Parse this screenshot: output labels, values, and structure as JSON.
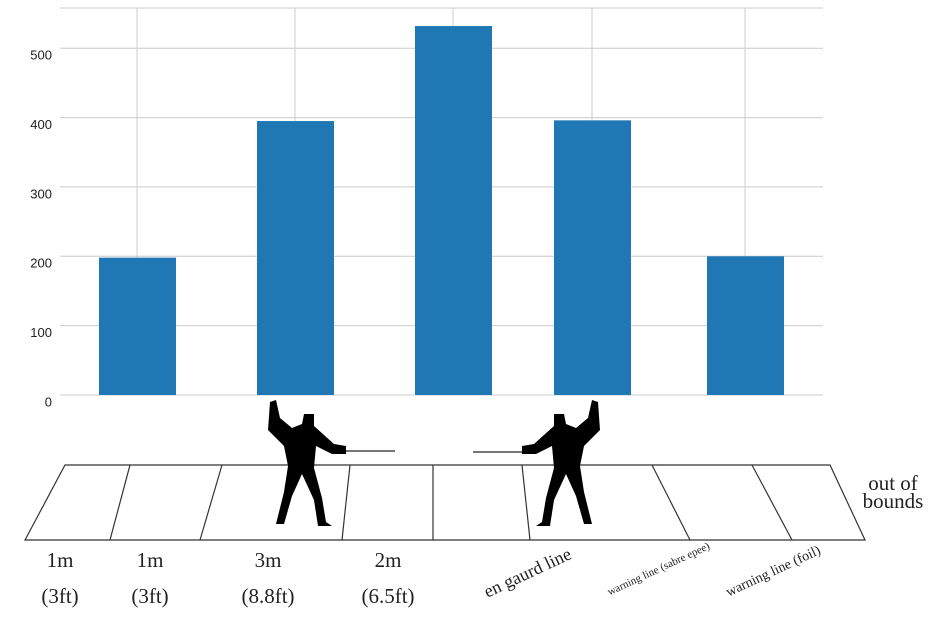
{
  "chart_data": {
    "type": "bar",
    "categories": [
      null,
      null,
      null,
      null,
      null
    ],
    "values": [
      198,
      395,
      532,
      396,
      200
    ],
    "color": "#1f77b4",
    "ylim": [
      0,
      558
    ],
    "yticks": [
      0,
      100,
      200,
      300,
      400,
      500
    ],
    "grid": true,
    "annotations": [
      "1m",
      "(3ft)",
      "1m",
      "(3ft)",
      "3m",
      "(8.8ft)",
      "2m",
      "(6.5ft)",
      "en gaurd line",
      "warning line (sabre epee)",
      "warning line (foil)",
      "out of",
      "bounds"
    ]
  }
}
